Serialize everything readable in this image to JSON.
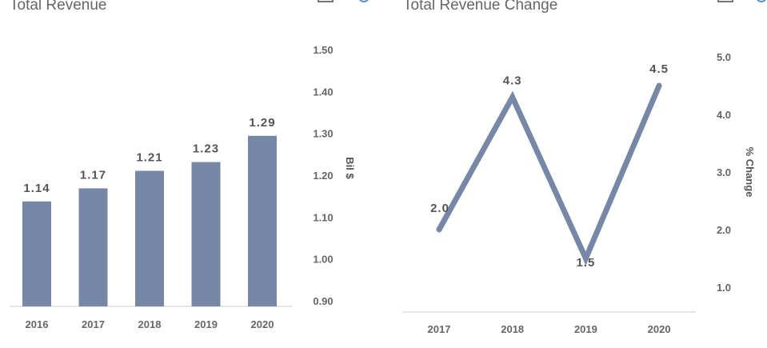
{
  "chart_data": [
    {
      "type": "bar",
      "title": "Total Revenue",
      "categories": [
        "2016",
        "2017",
        "2018",
        "2019",
        "2020"
      ],
      "values": [
        1.14,
        1.17,
        1.21,
        1.23,
        1.29
      ],
      "data_labels": [
        "1.14",
        "1.17",
        "1.21",
        "1.23",
        "1.29"
      ],
      "ylabel": "Bil $",
      "ylim": [
        0.9,
        1.5
      ],
      "yticks": [
        "0.90",
        "1.00",
        "1.10",
        "1.20",
        "1.30",
        "1.40",
        "1.50"
      ],
      "y_axis_side": "right",
      "grid": false,
      "color": "#7688a5"
    },
    {
      "type": "line",
      "title": "Total Revenue Change",
      "categories": [
        "2017",
        "2018",
        "2019",
        "2020"
      ],
      "values": [
        2.0,
        4.3,
        1.5,
        4.5
      ],
      "data_labels": [
        "2.0",
        "4.3",
        "1.5",
        "4.5"
      ],
      "ylabel": "% Change",
      "ylim": [
        1.0,
        5.0
      ],
      "yticks": [
        "1.0",
        "2.0",
        "3.0",
        "4.0",
        "5.0"
      ],
      "y_axis_side": "right",
      "grid": false,
      "color": "#7688a5"
    }
  ]
}
